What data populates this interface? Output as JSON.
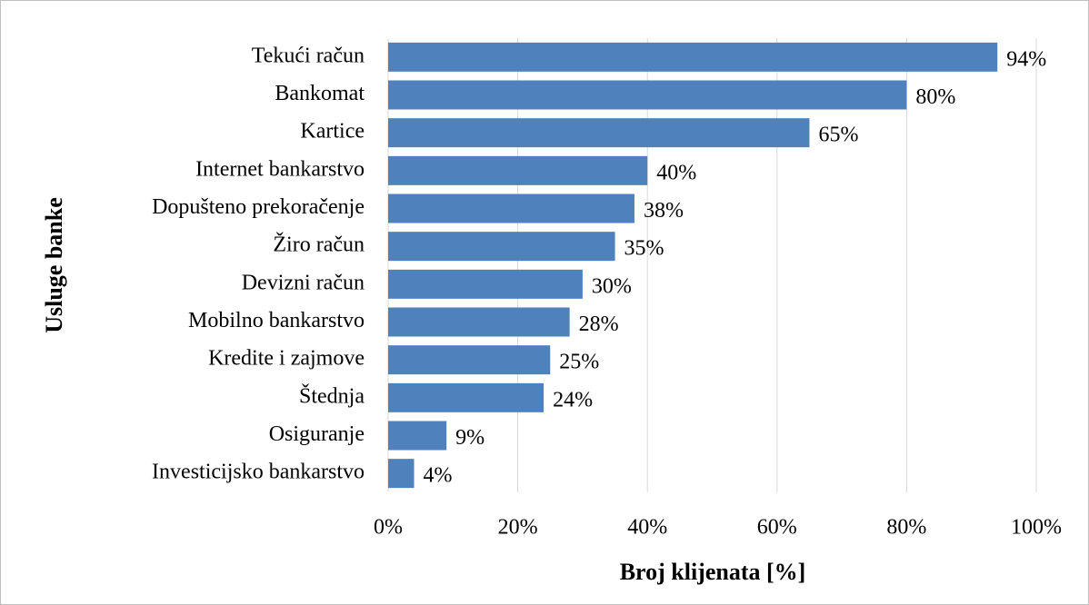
{
  "chart_data": {
    "type": "barh",
    "xlabel": "Broj klijenata [%]",
    "ylabel": "Usluge banke",
    "categories": [
      "Tekući račun",
      "Bankomat",
      "Kartice",
      "Internet bankarstvo",
      "Dopušteno prekoračenje",
      "Žiro račun",
      "Devizni račun",
      "Mobilno bankarstvo",
      "Kredite i zajmove",
      "Štednja",
      "Osiguranje",
      "Investicijsko bankarstvo"
    ],
    "values": [
      94,
      80,
      65,
      40,
      38,
      35,
      30,
      28,
      25,
      24,
      9,
      4
    ],
    "value_labels": [
      "94%",
      "80%",
      "65%",
      "40%",
      "38%",
      "35%",
      "30%",
      "28%",
      "25%",
      "24%",
      "9%",
      "4%"
    ],
    "color": "#4f81bd",
    "xlim": [
      0,
      100
    ],
    "xticks": [
      {
        "value": 0,
        "label": "0%"
      },
      {
        "value": 20,
        "label": "20%"
      },
      {
        "value": 40,
        "label": "40%"
      },
      {
        "value": 60,
        "label": "60%"
      },
      {
        "value": 80,
        "label": "80%"
      },
      {
        "value": 100,
        "label": "100%"
      }
    ],
    "grid": true
  }
}
